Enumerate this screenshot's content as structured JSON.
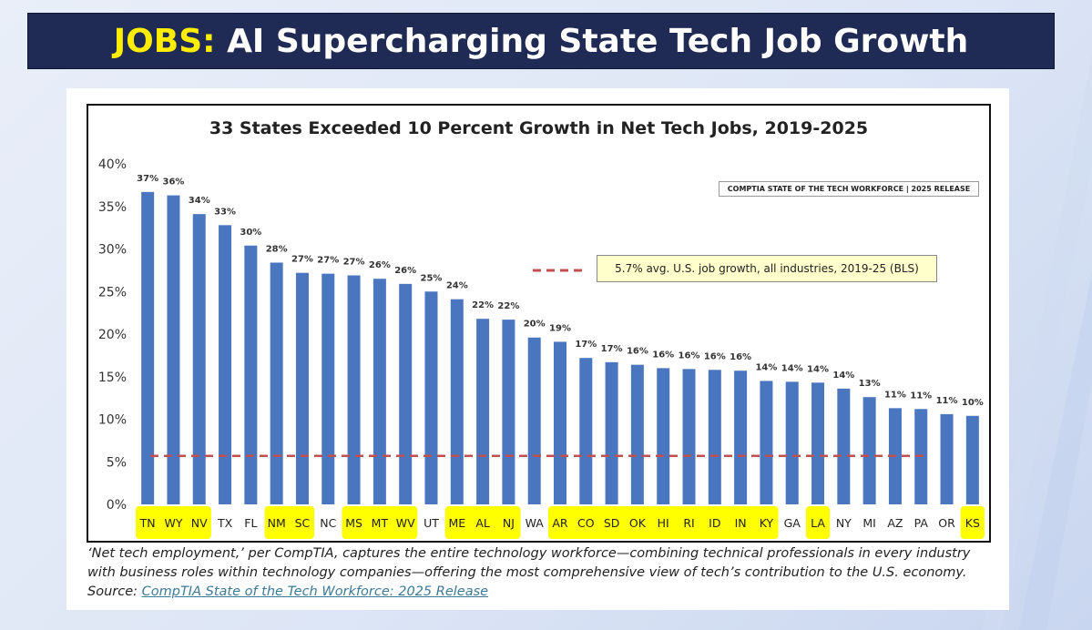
{
  "banner": {
    "label": "JOBS:",
    "title": "AI Supercharging State Tech Job Growth"
  },
  "source_badge": "COMPTIA STATE OF THE TECH WORKFORCE | 2025 RELEASE",
  "reference": {
    "label": "5.7% avg. U.S. job growth, all industries, 2019-25 (BLS)",
    "value": 5.7
  },
  "footnote": {
    "text": "‘Net tech employment,’ per CompTIA, captures the entire technology workforce—combining technical professionals in every industry with business roles within technology companies—offering the most comprehensive view of tech’s contribution to the U.S. economy. Source: ",
    "link": "CompTIA State of the Tech Workforce: 2025 Release"
  },
  "colors": {
    "bar": "#4a76bf",
    "highlight": "#ffff00",
    "reference": "#c0504d",
    "banner": "#1f2a55",
    "banner_label": "#ffee00"
  },
  "chart_data": {
    "type": "bar",
    "title": "33 States Exceeded 10 Percent Growth in Net Tech Jobs, 2019-2025",
    "xlabel": "",
    "ylabel": "",
    "ylim": [
      0,
      40
    ],
    "yticks": [
      "0%",
      "5%",
      "10%",
      "15%",
      "20%",
      "25%",
      "30%",
      "35%",
      "40%"
    ],
    "grid": true,
    "categories": [
      "TN",
      "WY",
      "NV",
      "TX",
      "FL",
      "NM",
      "SC",
      "NC",
      "MS",
      "MT",
      "WV",
      "UT",
      "ME",
      "AL",
      "NJ",
      "WA",
      "AR",
      "CO",
      "SD",
      "OK",
      "HI",
      "RI",
      "ID",
      "IN",
      "KY",
      "GA",
      "LA",
      "NY",
      "MI",
      "AZ",
      "PA",
      "OR",
      "KS"
    ],
    "values": [
      36.7,
      36.3,
      34.1,
      32.8,
      30.4,
      28.4,
      27.2,
      27.1,
      26.9,
      26.5,
      25.9,
      25.0,
      24.1,
      21.8,
      21.7,
      19.6,
      19.1,
      17.2,
      16.7,
      16.4,
      16.0,
      15.9,
      15.8,
      15.7,
      14.5,
      14.4,
      14.3,
      13.6,
      12.6,
      11.3,
      11.2,
      10.6,
      10.4
    ],
    "data_labels": [
      "37%",
      "36%",
      "34%",
      "33%",
      "30%",
      "28%",
      "27%",
      "27%",
      "27%",
      "26%",
      "26%",
      "25%",
      "24%",
      "22%",
      "22%",
      "20%",
      "19%",
      "17%",
      "17%",
      "16%",
      "16%",
      "16%",
      "16%",
      "16%",
      "14%",
      "14%",
      "14%",
      "14%",
      "13%",
      "11%",
      "11%",
      "11%",
      "10%"
    ],
    "highlighted_groups": [
      [
        "TN",
        "WY",
        "NV"
      ],
      [
        "NM",
        "SC"
      ],
      [
        "MS",
        "MT",
        "WV"
      ],
      [
        "ME",
        "AL",
        "NJ"
      ],
      [
        "AR",
        "CO",
        "SD",
        "OK",
        "HI",
        "RI",
        "ID",
        "IN",
        "KY"
      ],
      [
        "LA"
      ],
      [
        "KS"
      ]
    ]
  }
}
